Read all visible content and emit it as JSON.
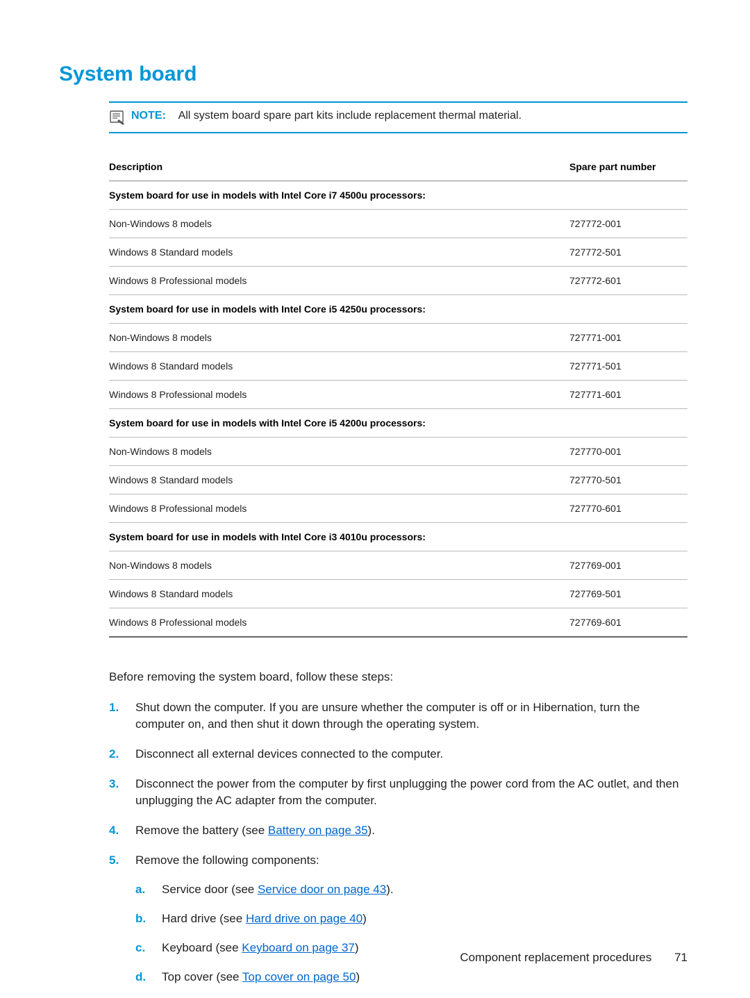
{
  "heading": "System board",
  "note": {
    "label": "NOTE:",
    "text": "All system board spare part kits include replacement thermal material."
  },
  "table": {
    "headers": {
      "description": "Description",
      "spn": "Spare part number"
    },
    "sections": [
      {
        "title": "System board for use in models with Intel Core i7 4500u processors:",
        "rows": [
          {
            "desc": "Non-Windows 8 models",
            "spn": "727772-001"
          },
          {
            "desc": "Windows 8 Standard models",
            "spn": "727772-501"
          },
          {
            "desc": "Windows 8 Professional models",
            "spn": "727772-601"
          }
        ]
      },
      {
        "title": "System board for use in models with Intel Core i5 4250u processors:",
        "rows": [
          {
            "desc": "Non-Windows 8 models",
            "spn": "727771-001"
          },
          {
            "desc": "Windows 8 Standard models",
            "spn": "727771-501"
          },
          {
            "desc": "Windows 8 Professional models",
            "spn": "727771-601"
          }
        ]
      },
      {
        "title": "System board for use in models with Intel Core i5 4200u processors:",
        "rows": [
          {
            "desc": "Non-Windows 8 models",
            "spn": "727770-001"
          },
          {
            "desc": "Windows 8 Standard models",
            "spn": "727770-501"
          },
          {
            "desc": "Windows 8 Professional models",
            "spn": "727770-601"
          }
        ]
      },
      {
        "title": "System board for use in models with Intel Core i3 4010u processors:",
        "rows": [
          {
            "desc": "Non-Windows 8 models",
            "spn": "727769-001"
          },
          {
            "desc": "Windows 8 Standard models",
            "spn": "727769-501"
          },
          {
            "desc": "Windows 8 Professional models",
            "spn": "727769-601"
          }
        ]
      }
    ]
  },
  "intro": "Before removing the system board, follow these steps:",
  "steps": {
    "s1": "Shut down the computer. If you are unsure whether the computer is off or in Hibernation, turn the computer on, and then shut it down through the operating system.",
    "s2": "Disconnect all external devices connected to the computer.",
    "s3": "Disconnect the power from the computer by first unplugging the power cord from the AC outlet, and then unplugging the AC adapter from the computer.",
    "s4_pre": "Remove the battery (see ",
    "s4_link": "Battery on page 35",
    "s4_post": ").",
    "s5": "Remove the following components:",
    "sub": {
      "a_pre": "Service door (see ",
      "a_link": "Service door on page 43",
      "a_post": ").",
      "b_pre": "Hard drive (see ",
      "b_link": "Hard drive on page 40",
      "b_post": ")",
      "c_pre": "Keyboard (see ",
      "c_link": "Keyboard on page 37",
      "c_post": ")",
      "d_pre": "Top cover (see ",
      "d_link": "Top cover on page 50",
      "d_post": ")"
    }
  },
  "footer": {
    "text": "Component replacement procedures",
    "page": "71"
  }
}
